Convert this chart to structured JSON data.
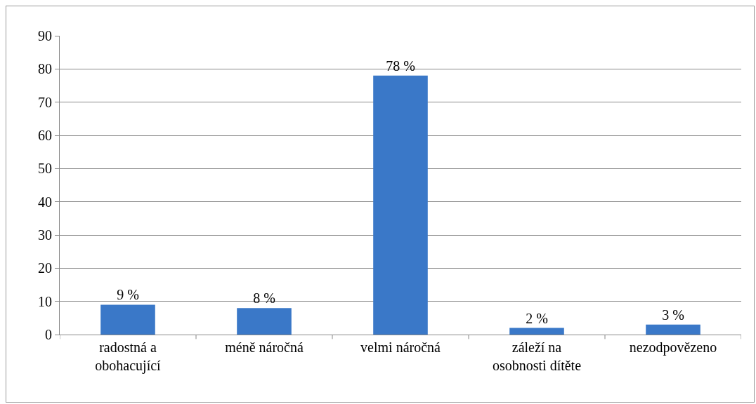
{
  "chart_data": {
    "type": "bar",
    "categories": [
      "radostná a obohacující",
      "méně náročná",
      "velmi náročná",
      "záleží na osobnosti dítěte",
      "nezodpovězeno"
    ],
    "values": [
      9,
      8,
      78,
      2,
      3
    ],
    "value_labels": [
      "9 %",
      "8 %",
      "78 %",
      "2 %",
      "3 %"
    ],
    "color": "#3a78c8",
    "ylim": [
      0,
      90
    ],
    "yticks": [
      0,
      10,
      20,
      30,
      40,
      50,
      60,
      70,
      80,
      90
    ],
    "grid": "y"
  }
}
